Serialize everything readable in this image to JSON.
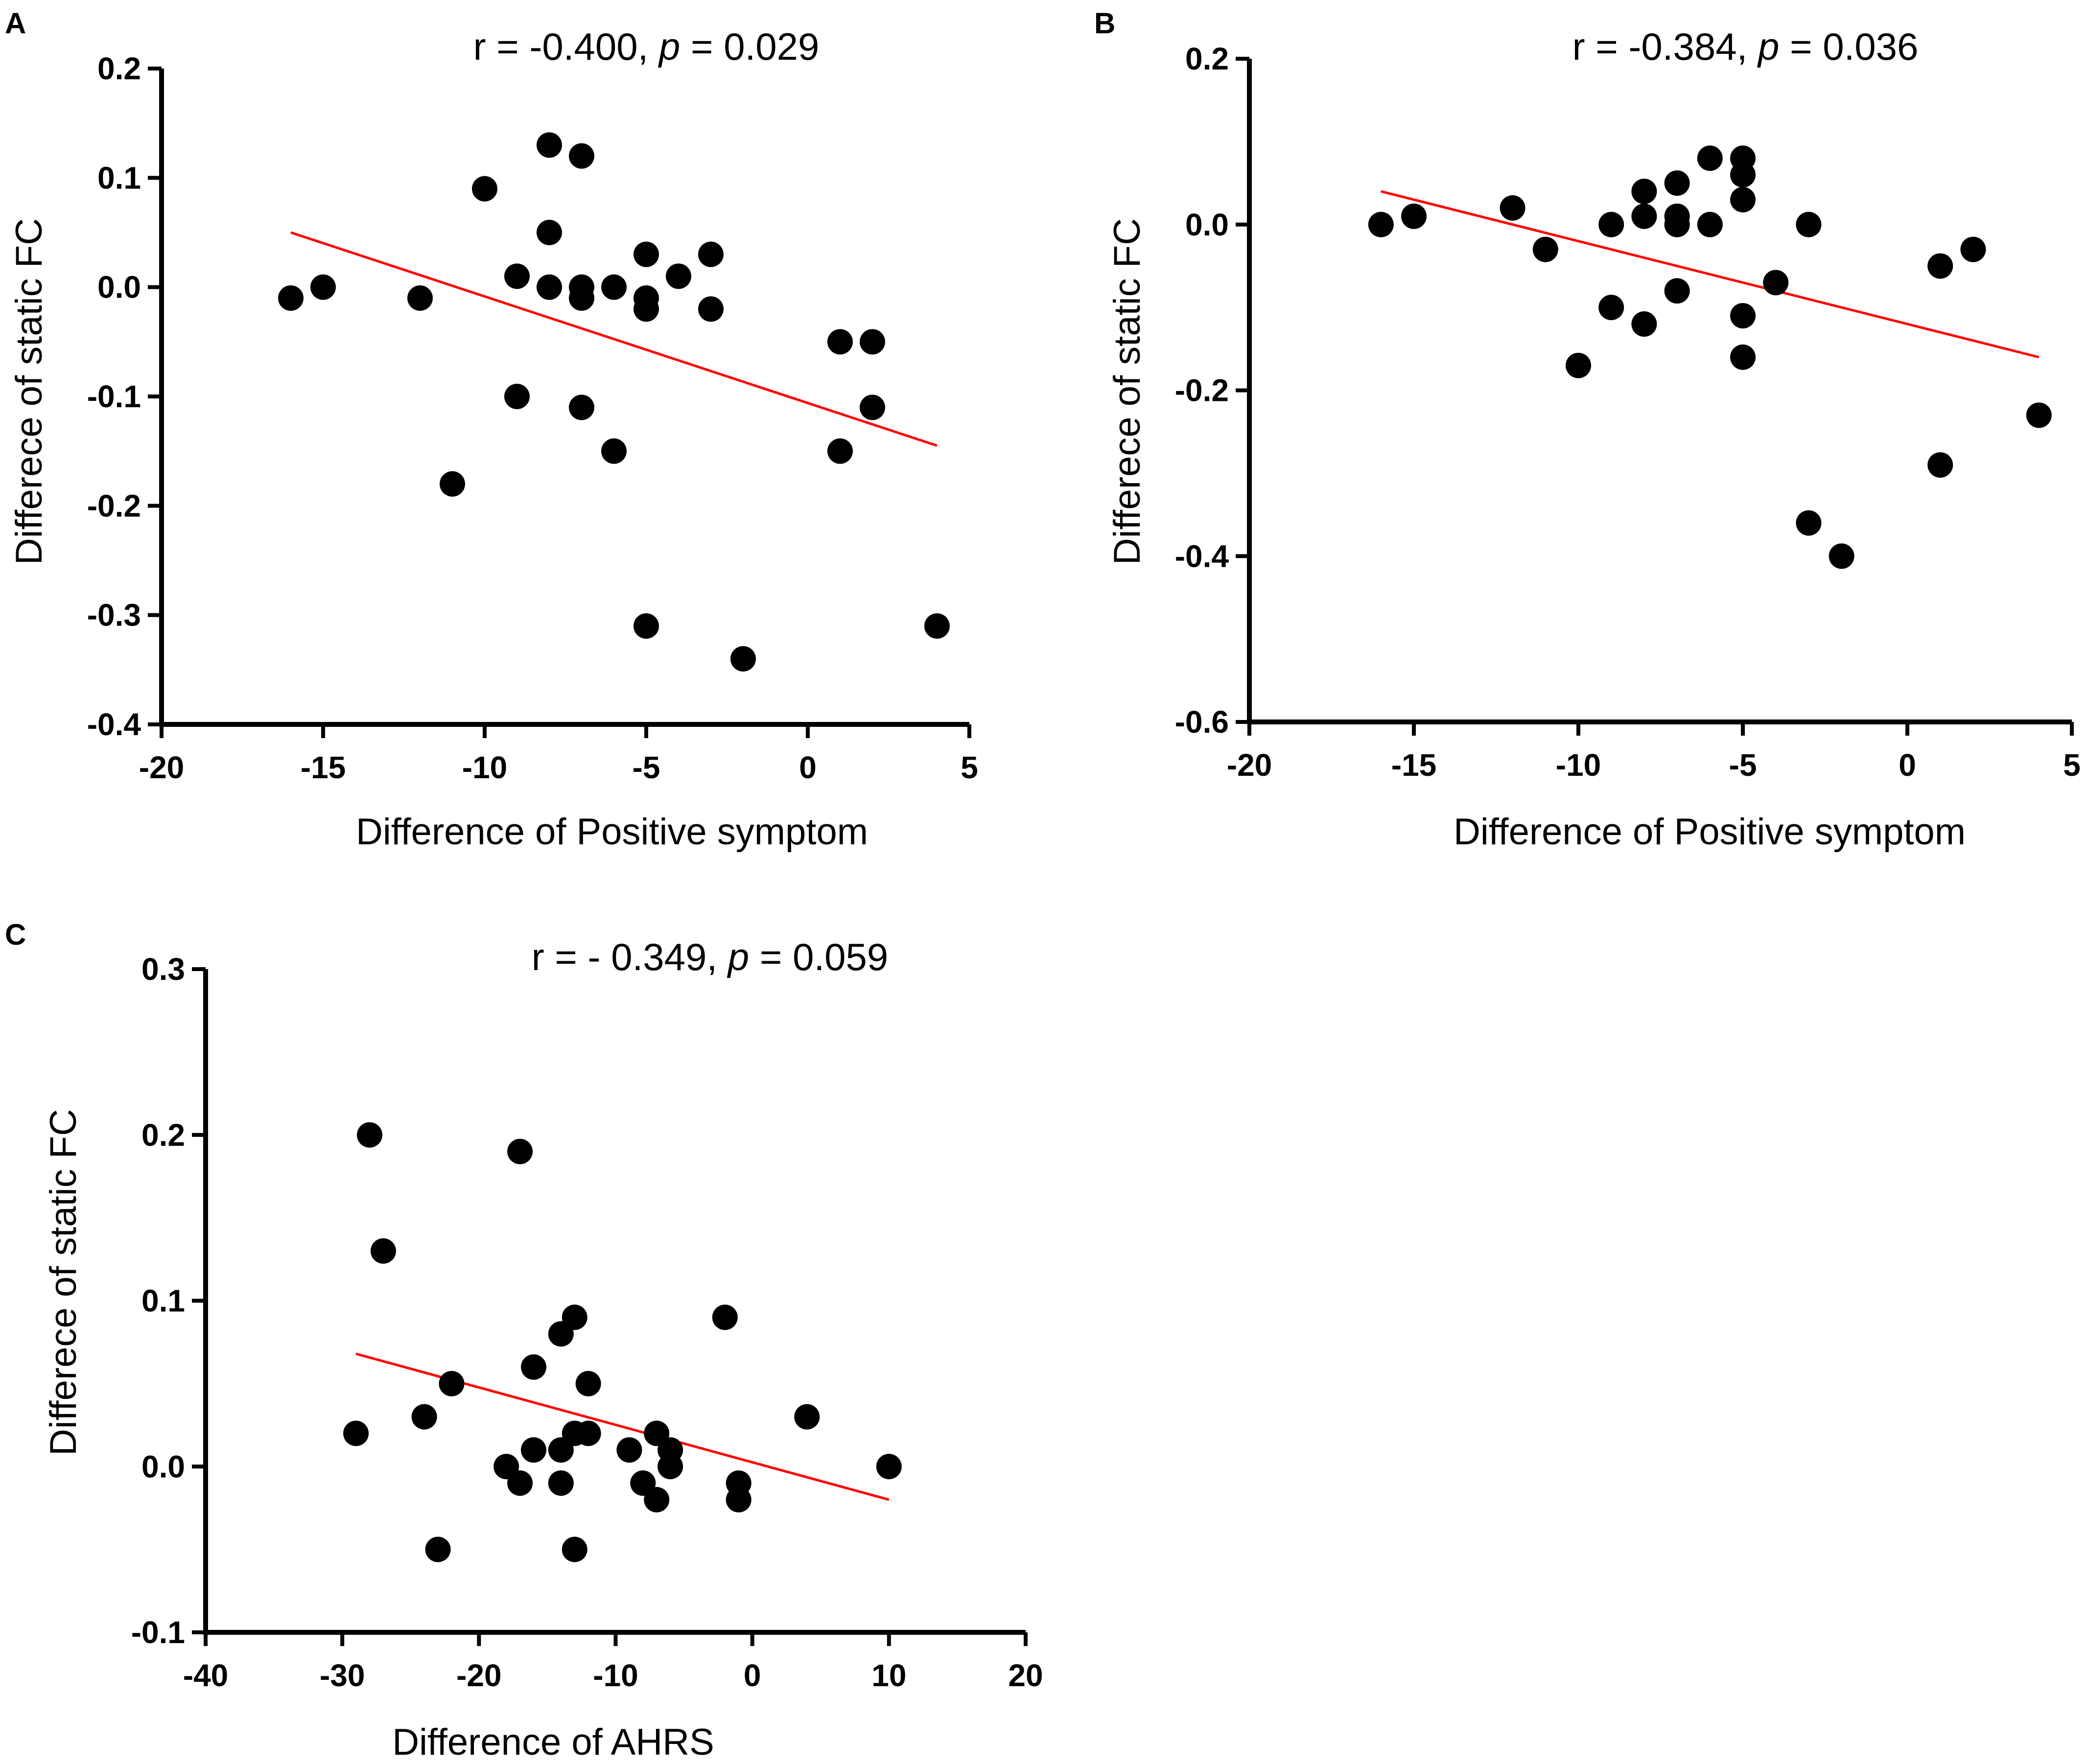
{
  "figure": {
    "panels": [
      "A",
      "B",
      "C"
    ]
  },
  "chart_data": [
    {
      "type": "scatter",
      "panel": "A",
      "title": "",
      "stat_r": "r = -0.400, ",
      "stat_p_symbol": "p",
      "stat_p_value": " = 0.029",
      "xlabel": "Difference of Positive symptom",
      "ylabel": "Differece of static FC",
      "xlim": [
        -20,
        5
      ],
      "ylim": [
        -0.4,
        0.2
      ],
      "x_ticks": [
        -20,
        -15,
        -10,
        -5,
        0,
        5
      ],
      "x_tick_labels": [
        "-20",
        "-15",
        "-10",
        "-5",
        "0",
        "5"
      ],
      "y_ticks": [
        -0.4,
        -0.3,
        -0.2,
        -0.1,
        0.0,
        0.1,
        0.2
      ],
      "y_tick_labels": [
        "-0.4",
        "-0.3",
        "-0.2",
        "-0.1",
        "0.0",
        "0.1",
        "0.2"
      ],
      "points": [
        [
          -16,
          -0.01
        ],
        [
          -15,
          0.0
        ],
        [
          -12,
          -0.01
        ],
        [
          -11,
          -0.18
        ],
        [
          -10,
          0.09
        ],
        [
          -9,
          0.01
        ],
        [
          -9,
          -0.1
        ],
        [
          -8,
          0.13
        ],
        [
          -8,
          0.05
        ],
        [
          -8,
          0.0
        ],
        [
          -7,
          0.12
        ],
        [
          -7,
          0.0
        ],
        [
          -7,
          -0.01
        ],
        [
          -7,
          -0.11
        ],
        [
          -6,
          0.0
        ],
        [
          -6,
          -0.15
        ],
        [
          -5,
          0.03
        ],
        [
          -5,
          -0.01
        ],
        [
          -5,
          -0.02
        ],
        [
          -5,
          -0.31
        ],
        [
          -4,
          0.01
        ],
        [
          -3,
          0.03
        ],
        [
          -3,
          -0.02
        ],
        [
          -2,
          -0.34
        ],
        [
          1,
          -0.05
        ],
        [
          1,
          -0.15
        ],
        [
          2,
          -0.05
        ],
        [
          2,
          -0.11
        ],
        [
          4,
          -0.31
        ]
      ],
      "fit_line": {
        "x": [
          -16,
          4
        ],
        "y": [
          0.05,
          -0.145
        ]
      },
      "marker_color": "#000000",
      "fit_color": "#ff0000"
    },
    {
      "type": "scatter",
      "panel": "B",
      "title": "",
      "stat_r": "r = -0.384, ",
      "stat_p_symbol": "p",
      "stat_p_value": " = 0.036",
      "xlabel": "Difference of Positive symptom",
      "ylabel": "Differece of static FC",
      "xlim": [
        -20,
        5
      ],
      "ylim": [
        -0.6,
        0.2
      ],
      "x_ticks": [
        -20,
        -15,
        -10,
        -5,
        0,
        5
      ],
      "x_tick_labels": [
        "-20",
        "-15",
        "-10",
        "-5",
        "0",
        "5"
      ],
      "y_ticks": [
        -0.6,
        -0.4,
        -0.2,
        0.0,
        0.2
      ],
      "y_tick_labels": [
        "-0.6",
        "-0.4",
        "-0.2",
        "0.0",
        "0.2"
      ],
      "points": [
        [
          -16,
          0.0
        ],
        [
          -15,
          0.01
        ],
        [
          -12,
          0.02
        ],
        [
          -11,
          -0.03
        ],
        [
          -10,
          -0.17
        ],
        [
          -9,
          0.0
        ],
        [
          -9,
          -0.1
        ],
        [
          -8,
          0.04
        ],
        [
          -8,
          0.01
        ],
        [
          -8,
          -0.12
        ],
        [
          -7,
          0.05
        ],
        [
          -7,
          0.01
        ],
        [
          -7,
          0.0
        ],
        [
          -7,
          -0.08
        ],
        [
          -6,
          0.08
        ],
        [
          -6,
          0.0
        ],
        [
          -5,
          0.08
        ],
        [
          -5,
          0.06
        ],
        [
          -5,
          0.03
        ],
        [
          -5,
          -0.11
        ],
        [
          -5,
          -0.16
        ],
        [
          -4,
          -0.07
        ],
        [
          -3,
          0.0
        ],
        [
          -3,
          -0.36
        ],
        [
          -2,
          -0.4
        ],
        [
          1,
          -0.05
        ],
        [
          1,
          -0.29
        ],
        [
          2,
          -0.03
        ],
        [
          4,
          -0.23
        ]
      ],
      "fit_line": {
        "x": [
          -16,
          4
        ],
        "y": [
          0.04,
          -0.16
        ]
      },
      "marker_color": "#000000",
      "fit_color": "#ff0000"
    },
    {
      "type": "scatter",
      "panel": "C",
      "title": "",
      "stat_r": "r = - 0.349, ",
      "stat_p_symbol": "p",
      "stat_p_value": " = 0.059",
      "xlabel": "Difference of AHRS",
      "ylabel": "Differece of static FC",
      "xlim": [
        -40,
        20
      ],
      "ylim": [
        -0.1,
        0.3
      ],
      "x_ticks": [
        -40,
        -30,
        -20,
        -10,
        0,
        10,
        20
      ],
      "x_tick_labels": [
        "-40",
        "-30",
        "-20",
        "-10",
        "0",
        "10",
        "20"
      ],
      "y_ticks": [
        -0.1,
        0.0,
        0.1,
        0.2,
        0.3
      ],
      "y_tick_labels": [
        "-0.1",
        "0.0",
        "0.1",
        "0.2",
        "0.3"
      ],
      "points": [
        [
          -29,
          0.02
        ],
        [
          -28,
          0.2
        ],
        [
          -27,
          0.13
        ],
        [
          -24,
          0.03
        ],
        [
          -23,
          -0.05
        ],
        [
          -22,
          0.05
        ],
        [
          -18,
          0.0
        ],
        [
          -17,
          0.19
        ],
        [
          -17,
          -0.01
        ],
        [
          -16,
          0.06
        ],
        [
          -16,
          0.01
        ],
        [
          -14,
          0.08
        ],
        [
          -14,
          0.01
        ],
        [
          -14,
          -0.01
        ],
        [
          -13,
          0.09
        ],
        [
          -13,
          0.02
        ],
        [
          -13,
          -0.05
        ],
        [
          -12,
          0.05
        ],
        [
          -12,
          0.02
        ],
        [
          -9,
          0.01
        ],
        [
          -8,
          -0.01
        ],
        [
          -7,
          0.02
        ],
        [
          -7,
          -0.02
        ],
        [
          -6,
          0.01
        ],
        [
          -6,
          0.0
        ],
        [
          -2,
          0.09
        ],
        [
          -1,
          -0.01
        ],
        [
          -1,
          -0.02
        ],
        [
          4,
          0.03
        ],
        [
          10,
          0.0
        ]
      ],
      "fit_line": {
        "x": [
          -29,
          10
        ],
        "y": [
          0.068,
          -0.02
        ]
      },
      "marker_color": "#000000",
      "fit_color": "#ff0000"
    }
  ]
}
